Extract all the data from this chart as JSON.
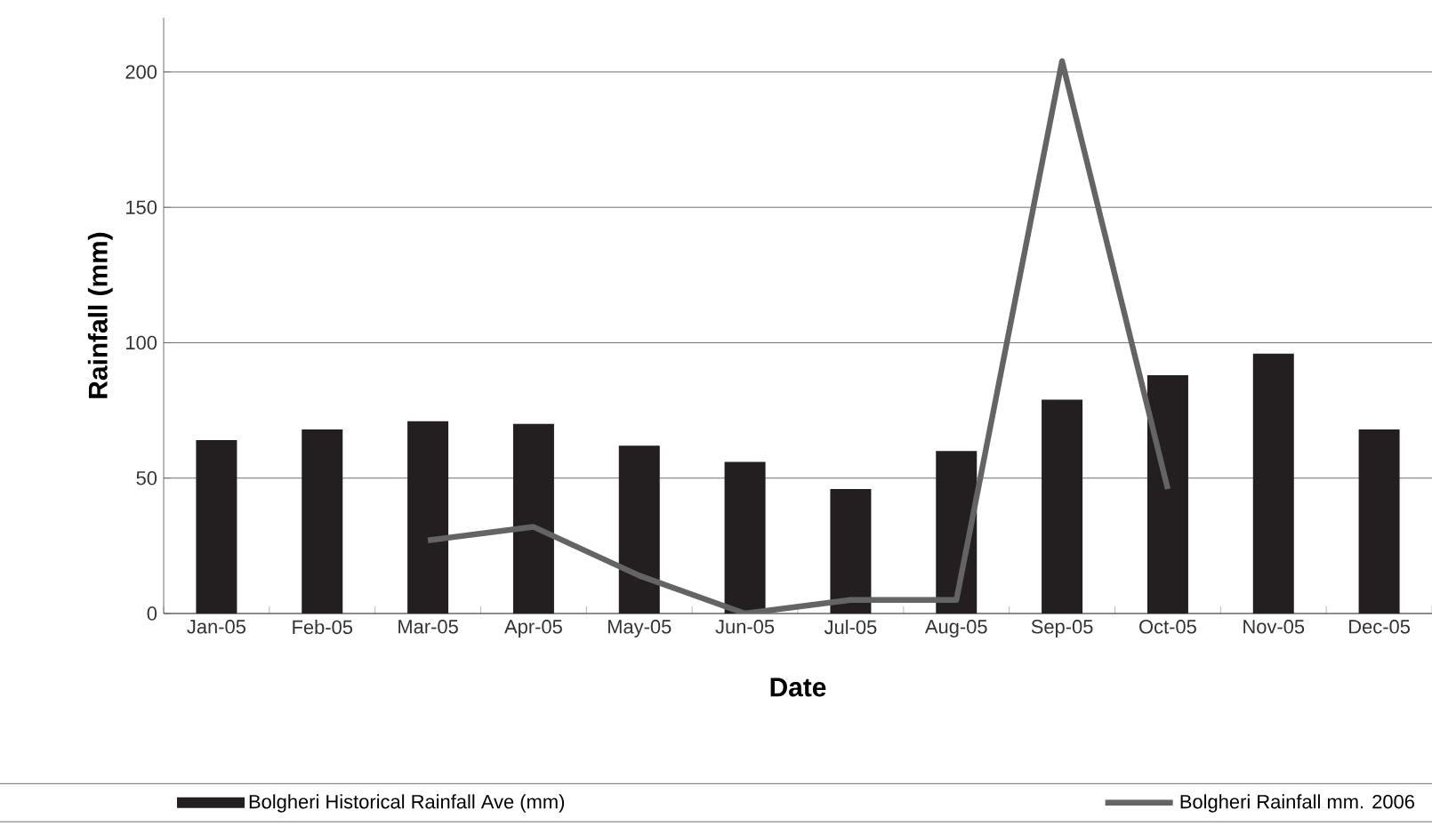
{
  "chart_data": {
    "type": "bar",
    "xlabel": "Date",
    "ylabel": "Rainfall (mm)",
    "categories": [
      "Jan-05",
      "Feb-05",
      "Mar-05",
      "Apr-05",
      "May-05",
      "Jun-05",
      "Jul-05",
      "Aug-05",
      "Sep-05",
      "Oct-05",
      "Nov-05",
      "Dec-05"
    ],
    "series": [
      {
        "name": "Bolgheri Historical Rainfall Ave (mm)",
        "color": "#231f20",
        "values": [
          64,
          68,
          71,
          70,
          62,
          56,
          46,
          60,
          79,
          88,
          96,
          68
        ]
      },
      {
        "name": "Bolgheri Rainfall mm. 2006",
        "type": "line",
        "color": "#646464",
        "values": [
          null,
          null,
          27,
          32,
          14,
          0,
          5,
          5,
          204,
          46,
          null,
          null
        ]
      }
    ],
    "ylim": [
      0,
      220
    ],
    "yticks": [
      0,
      50,
      100,
      150,
      200
    ],
    "grid": "y",
    "legend": "bottom",
    "marker": "none",
    "line_style": "solid"
  }
}
